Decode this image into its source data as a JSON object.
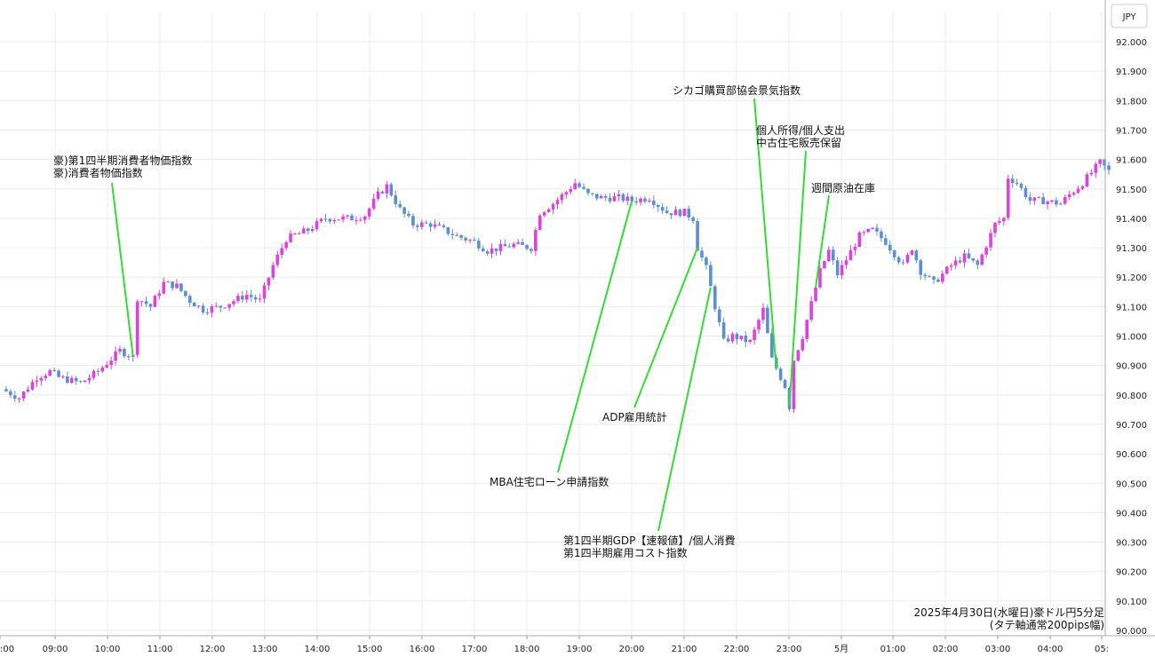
{
  "chart_data": {
    "type": "candlestick",
    "currency_label": "JPY",
    "caption": [
      "2025年4月30日(水曜日)豪ドル円5分足",
      "(タテ軸通常200pips幅)"
    ],
    "ylim": [
      90.0,
      92.0
    ],
    "y_ticks": [
      "92.000",
      "91.900",
      "91.800",
      "91.700",
      "91.600",
      "91.500",
      "91.400",
      "91.300",
      "91.200",
      "91.100",
      "91.000",
      "90.900",
      "90.800",
      "90.700",
      "90.600",
      "90.500",
      "90.400",
      "90.300",
      "90.200",
      "90.100",
      "90.000"
    ],
    "x_ticks": [
      ":00",
      "09:00",
      "10:00",
      "11:00",
      "12:00",
      "13:00",
      "14:00",
      "15:00",
      "16:00",
      "17:00",
      "18:00",
      "19:00",
      "20:00",
      "21:00",
      "22:00",
      "23:00",
      "5月",
      "01:00",
      "02:00",
      "03:00",
      "04:00",
      "05:"
    ],
    "grid": true,
    "colors": {
      "up": "#e040e0",
      "down": "#5b8fd4",
      "annotation_line": "#33dd33",
      "grid": "#ececec"
    },
    "price_path": [
      [
        "08:00",
        90.82
      ],
      [
        "08:20",
        90.79
      ],
      [
        "08:40",
        90.86
      ],
      [
        "08:55",
        90.88
      ],
      [
        "09:05",
        90.86
      ],
      [
        "09:30",
        90.84
      ],
      [
        "09:50",
        90.88
      ],
      [
        "10:15",
        90.95
      ],
      [
        "10:30",
        90.93
      ],
      [
        "10:35",
        91.13
      ],
      [
        "10:50",
        91.1
      ],
      [
        "11:05",
        91.18
      ],
      [
        "11:20",
        91.17
      ],
      [
        "11:35",
        91.12
      ],
      [
        "11:50",
        91.09
      ],
      [
        "12:10",
        91.1
      ],
      [
        "12:40",
        91.14
      ],
      [
        "12:55",
        91.12
      ],
      [
        "13:10",
        91.24
      ],
      [
        "13:25",
        91.33
      ],
      [
        "13:50",
        91.36
      ],
      [
        "14:10",
        91.4
      ],
      [
        "14:40",
        91.4
      ],
      [
        "14:55",
        91.41
      ],
      [
        "15:10",
        91.48
      ],
      [
        "15:20",
        91.51
      ],
      [
        "15:35",
        91.43
      ],
      [
        "15:50",
        91.38
      ],
      [
        "16:10",
        91.38
      ],
      [
        "16:40",
        91.34
      ],
      [
        "17:00",
        91.32
      ],
      [
        "17:15",
        91.29
      ],
      [
        "17:45",
        91.31
      ],
      [
        "18:05",
        91.3
      ],
      [
        "18:15",
        91.42
      ],
      [
        "18:30",
        91.45
      ],
      [
        "18:45",
        91.49
      ],
      [
        "18:55",
        91.52
      ],
      [
        "19:10",
        91.48
      ],
      [
        "19:25",
        91.47
      ],
      [
        "19:45",
        91.47
      ],
      [
        "20:00",
        91.46
      ],
      [
        "20:20",
        91.47
      ],
      [
        "20:40",
        91.42
      ],
      [
        "21:00",
        91.42
      ],
      [
        "21:10",
        91.4
      ],
      [
        "21:15",
        91.3
      ],
      [
        "21:25",
        91.23
      ],
      [
        "21:35",
        91.1
      ],
      [
        "21:45",
        90.98
      ],
      [
        "21:55",
        91.0
      ],
      [
        "22:15",
        90.98
      ],
      [
        "22:30",
        91.09
      ],
      [
        "22:40",
        90.92
      ],
      [
        "22:50",
        90.86
      ],
      [
        "22:55",
        90.83
      ],
      [
        "23:00",
        90.76
      ],
      [
        "23:05",
        90.92
      ],
      [
        "23:15",
        91.0
      ],
      [
        "23:25",
        91.11
      ],
      [
        "23:35",
        91.22
      ],
      [
        "23:45",
        91.29
      ],
      [
        "23:55",
        91.21
      ],
      [
        "00:05",
        91.26
      ],
      [
        "00:20",
        91.34
      ],
      [
        "00:35",
        91.36
      ],
      [
        "00:50",
        91.32
      ],
      [
        "01:10",
        91.24
      ],
      [
        "01:20",
        91.3
      ],
      [
        "01:30",
        91.22
      ],
      [
        "01:45",
        91.18
      ],
      [
        "02:05",
        91.24
      ],
      [
        "02:20",
        91.27
      ],
      [
        "02:35",
        91.24
      ],
      [
        "02:55",
        91.38
      ],
      [
        "03:05",
        91.4
      ],
      [
        "03:10",
        91.54
      ],
      [
        "03:20",
        91.52
      ],
      [
        "03:35",
        91.46
      ],
      [
        "03:50",
        91.46
      ],
      [
        "04:10",
        91.45
      ],
      [
        "04:20",
        91.48
      ],
      [
        "04:35",
        91.52
      ],
      [
        "04:55",
        91.59
      ],
      [
        "05:05",
        91.56
      ]
    ],
    "annotations": [
      {
        "label": [
          "豪)第1四半期消費者物価指数",
          "豪)消費者物価指数"
        ],
        "time": "10:30"
      },
      {
        "label": [
          "MBA住宅ローン申請指数"
        ],
        "time": "20:00"
      },
      {
        "label": [
          "ADP雇用統計"
        ],
        "time": "21:15"
      },
      {
        "label": [
          "第1四半期GDP【速報値】/個人消費",
          "第1四半期雇用コスト指数"
        ],
        "time": "21:30"
      },
      {
        "label": [
          "シカゴ購買部協会景気指数"
        ],
        "time": "22:45"
      },
      {
        "label": [
          "個人所得/個人支出",
          "中古住宅販売保留"
        ],
        "time": "23:00"
      },
      {
        "label": [
          "週間原油在庫"
        ],
        "time": "23:30"
      }
    ]
  }
}
